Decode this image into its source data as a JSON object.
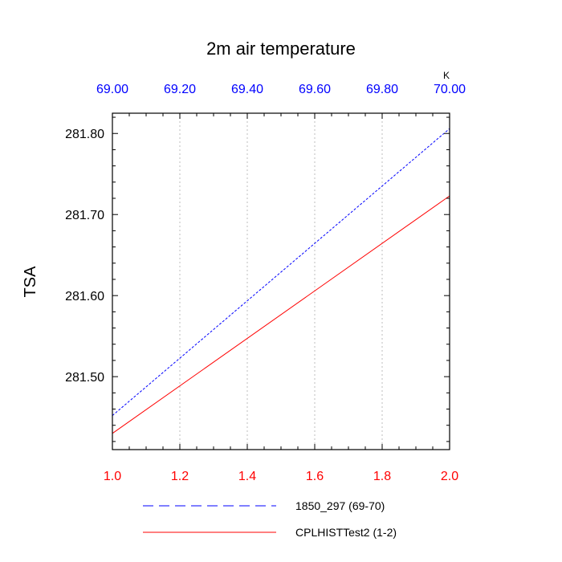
{
  "chart_data": {
    "type": "line",
    "title": "2m air temperature",
    "ylabel": "TSA",
    "units": "K",
    "ylim": [
      281.41,
      281.825
    ],
    "yticks": [
      281.5,
      281.6,
      281.7,
      281.8
    ],
    "ytick_labels": [
      "281.50",
      "281.60",
      "281.70",
      "281.80"
    ],
    "x_bottom": {
      "range": [
        1.0,
        2.0
      ],
      "ticks": [
        1.0,
        1.2,
        1.4,
        1.6,
        1.8,
        2.0
      ],
      "tick_labels": [
        "1.0",
        "1.2",
        "1.4",
        "1.6",
        "1.8",
        "2.0"
      ],
      "color": "#ff0000"
    },
    "x_top": {
      "range": [
        69.0,
        70.0
      ],
      "ticks": [
        69.0,
        69.2,
        69.4,
        69.6,
        69.8,
        70.0
      ],
      "tick_labels": [
        "69.00",
        "69.20",
        "69.40",
        "69.60",
        "69.80",
        "70.00"
      ],
      "color": "#0000ff"
    },
    "grid": "vertical dotted",
    "legend_position": "bottom",
    "series": [
      {
        "name": "1850_297 (69-70)",
        "axis": "top",
        "x": [
          69.0,
          70.0
        ],
        "values": [
          281.452,
          281.806
        ],
        "color": "#0000ff",
        "dash": "dashed"
      },
      {
        "name": "CPLHISTTest2 (1-2)",
        "axis": "bottom",
        "x": [
          1.0,
          2.0
        ],
        "values": [
          281.43,
          281.723
        ],
        "color": "#ff0000",
        "dash": "solid"
      }
    ]
  }
}
